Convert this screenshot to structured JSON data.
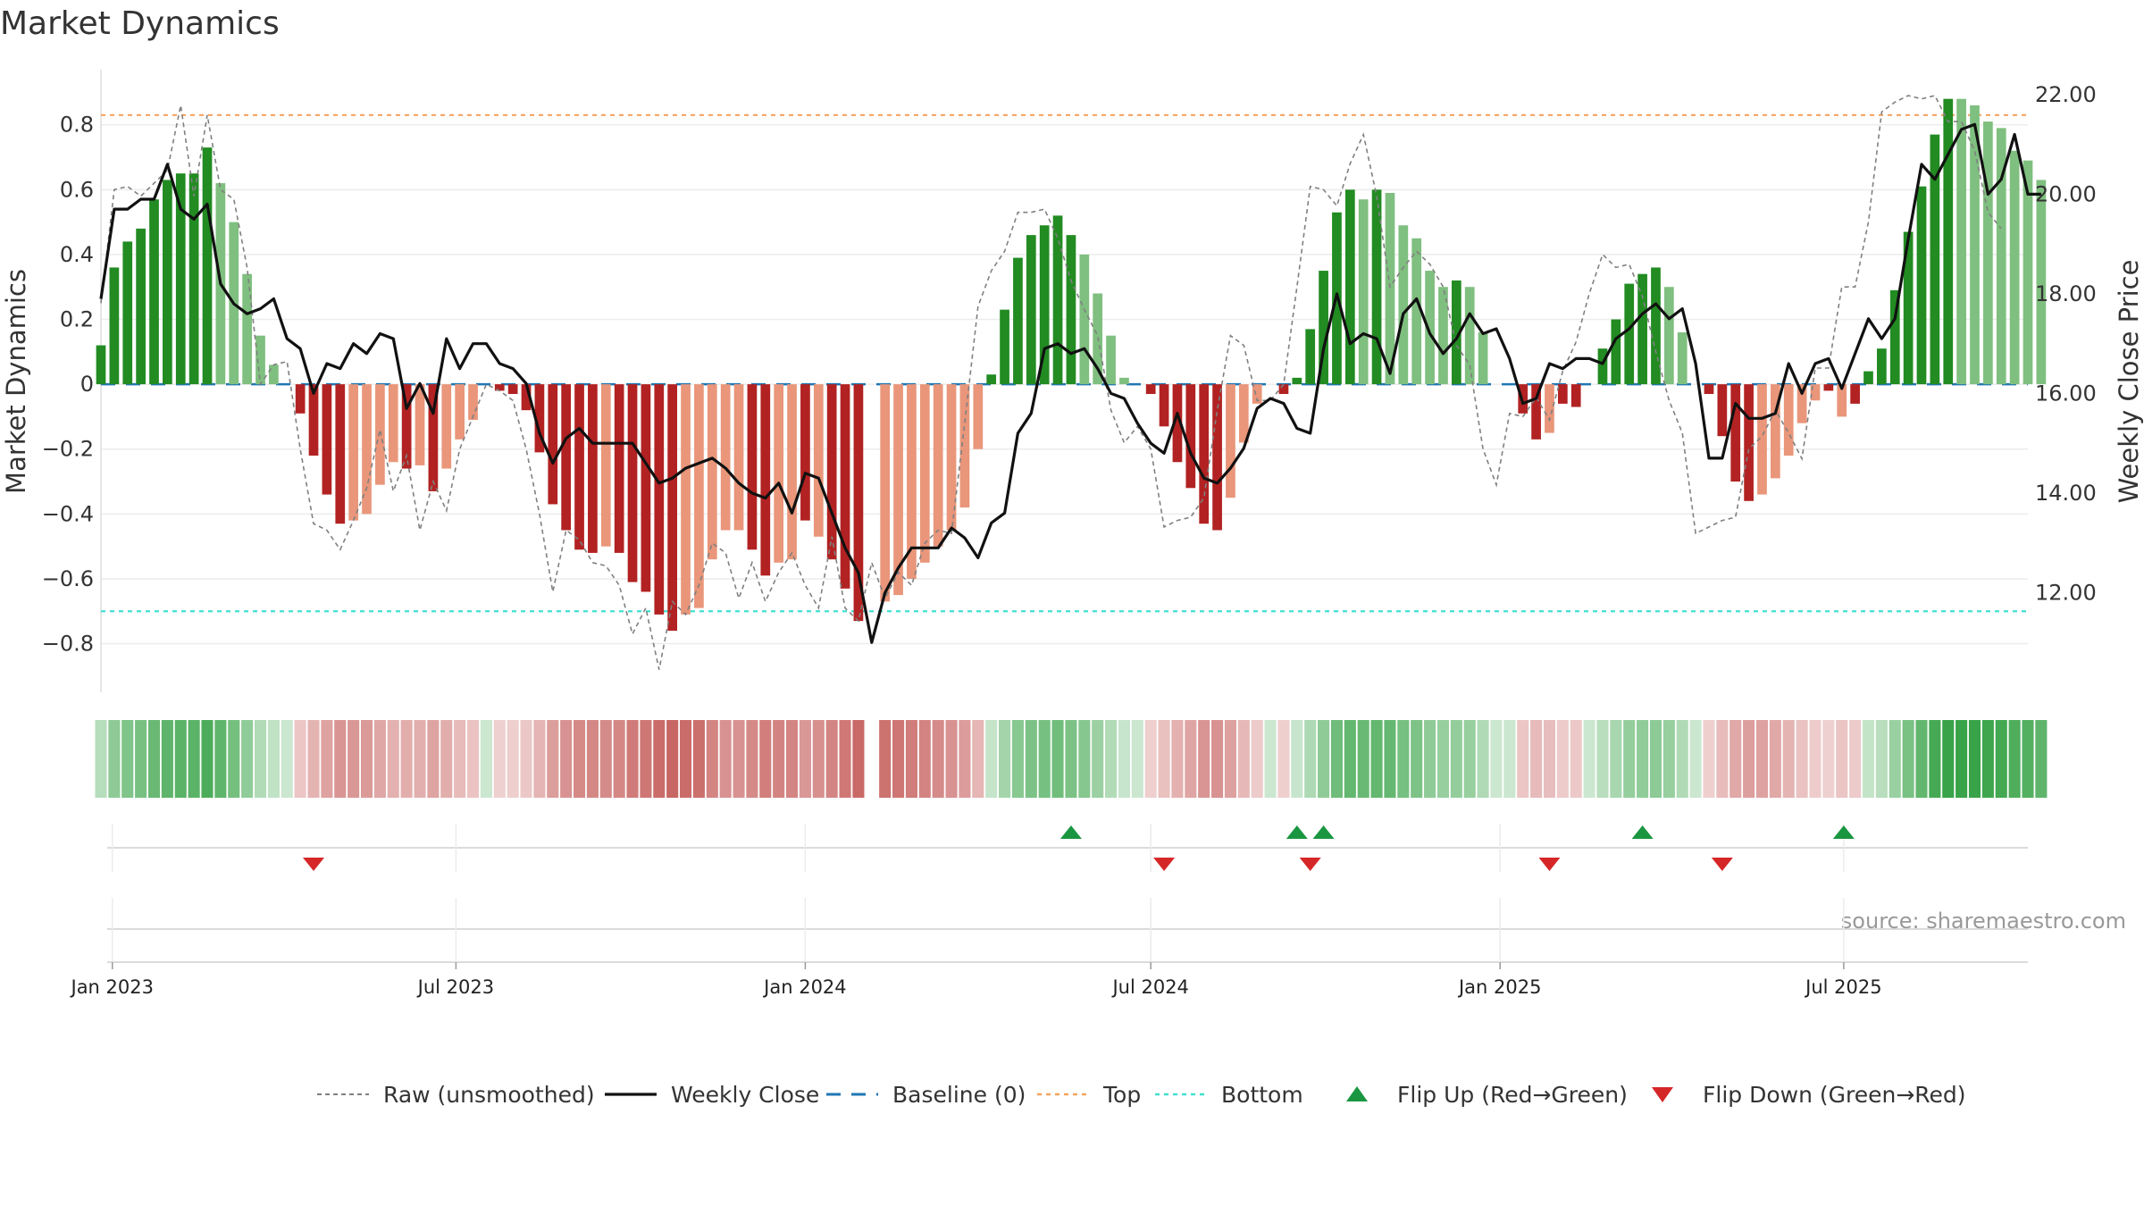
{
  "chart_data": {
    "type": "bar",
    "title": "Market Dynamics",
    "ylabel": "Market Dynamics",
    "y2label": "Weekly Close Price",
    "source": "source: sharemaestro.com",
    "ylim": [
      -0.95,
      0.97
    ],
    "y2lim": [
      10.0,
      22.5
    ],
    "yticks": [
      0.8,
      0.6,
      0.4,
      0.2,
      0,
      -0.2,
      -0.4,
      -0.6,
      -0.8
    ],
    "ytick_labels": [
      "0.8",
      "0.6",
      "0.4",
      "0.2",
      "0",
      "−0.2",
      "−0.4",
      "−0.6",
      "−0.8"
    ],
    "y2ticks": [
      22,
      20,
      18,
      16,
      14,
      12
    ],
    "y2tick_labels": [
      "22.00",
      "20.00",
      "18.00",
      "16.00",
      "14.00",
      "12.00"
    ],
    "x_start": "2022-12-26",
    "x_end": "2025-10-06",
    "xticks": [
      {
        "date": "2023-01-01",
        "label": "Jan 2023"
      },
      {
        "date": "2023-07-01",
        "label": "Jul 2023"
      },
      {
        "date": "2024-01-01",
        "label": "Jan 2024"
      },
      {
        "date": "2024-07-01",
        "label": "Jul 2024"
      },
      {
        "date": "2025-01-01",
        "label": "Jan 2025"
      },
      {
        "date": "2025-07-01",
        "label": "Jul 2025"
      }
    ],
    "first_week": "2022-12-26",
    "top": 0.83,
    "bottom": -0.7,
    "baseline": 0,
    "colors": {
      "strong_up": "#228b22",
      "weak_up": "#7fbf7f",
      "strong_down": "#b22222",
      "weak_down": "#e9967a",
      "raw": "#808080",
      "close": "#111111",
      "baseline": "#1f77b4",
      "top": "#f4a460",
      "bottom": "#40e0d0",
      "flip_up": "#1a9641",
      "flip_down": "#d62728"
    },
    "dynamics": [
      0.12,
      0.36,
      0.44,
      0.48,
      0.57,
      0.63,
      0.65,
      0.65,
      0.73,
      0.62,
      0.5,
      0.34,
      0.15,
      0.06,
      0.0,
      -0.09,
      -0.22,
      -0.34,
      -0.43,
      -0.42,
      -0.4,
      -0.31,
      -0.24,
      -0.26,
      -0.25,
      -0.33,
      -0.26,
      -0.17,
      -0.11,
      0.0,
      -0.02,
      -0.03,
      -0.08,
      -0.21,
      -0.37,
      -0.45,
      -0.51,
      -0.52,
      -0.5,
      -0.52,
      -0.61,
      -0.64,
      -0.71,
      -0.76,
      -0.71,
      -0.69,
      -0.54,
      -0.45,
      -0.45,
      -0.51,
      -0.59,
      -0.55,
      -0.54,
      -0.42,
      -0.47,
      -0.54,
      -0.63,
      -0.73,
      null,
      -0.67,
      -0.65,
      -0.6,
      -0.55,
      -0.5,
      -0.45,
      -0.38,
      -0.2,
      0.03,
      0.23,
      0.39,
      0.46,
      0.49,
      0.52,
      0.46,
      0.4,
      0.28,
      0.15,
      0.02,
      0.0,
      -0.03,
      -0.13,
      -0.24,
      -0.32,
      -0.43,
      -0.45,
      -0.35,
      -0.18,
      -0.06,
      0.0,
      -0.03,
      0.02,
      0.17,
      0.35,
      0.53,
      0.6,
      0.57,
      0.6,
      0.59,
      0.49,
      0.45,
      0.35,
      0.3,
      0.32,
      0.3,
      0.16,
      0.0,
      0.0,
      -0.09,
      -0.17,
      -0.15,
      -0.06,
      -0.07,
      0.0,
      0.11,
      0.2,
      0.31,
      0.34,
      0.36,
      0.3,
      0.16,
      0.0,
      -0.03,
      -0.16,
      -0.3,
      -0.36,
      -0.34,
      -0.29,
      -0.22,
      -0.12,
      -0.05,
      -0.02,
      -0.1,
      -0.06,
      0.04,
      0.11,
      0.29,
      0.47,
      0.61,
      0.77,
      0.88,
      0.88,
      0.86,
      0.81,
      0.79,
      0.72,
      0.69,
      0.63
    ],
    "strength": [
      1,
      1,
      1,
      1,
      1,
      1,
      1,
      1,
      1,
      0,
      0,
      0,
      0,
      0,
      0,
      1,
      1,
      1,
      1,
      0,
      0,
      0,
      0,
      1,
      0,
      1,
      0,
      0,
      0,
      0,
      1,
      1,
      1,
      1,
      1,
      1,
      1,
      1,
      0,
      1,
      1,
      1,
      1,
      1,
      0,
      0,
      0,
      0,
      0,
      1,
      1,
      0,
      0,
      1,
      0,
      1,
      1,
      1,
      0,
      0,
      0,
      0,
      0,
      0,
      0,
      0,
      0,
      1,
      1,
      1,
      1,
      1,
      1,
      1,
      0,
      0,
      0,
      0,
      0,
      1,
      1,
      1,
      1,
      1,
      1,
      0,
      0,
      0,
      0,
      1,
      1,
      1,
      1,
      1,
      1,
      0,
      1,
      0,
      0,
      0,
      0,
      0,
      1,
      0,
      0,
      0,
      0,
      1,
      1,
      0,
      1,
      1,
      0,
      1,
      1,
      1,
      1,
      1,
      0,
      0,
      0,
      1,
      1,
      1,
      1,
      0,
      0,
      0,
      0,
      0,
      1,
      0,
      1,
      1,
      1,
      1,
      1,
      1,
      1,
      1,
      0,
      0,
      0,
      0,
      0
    ],
    "raw": [
      0.25,
      0.6,
      0.61,
      0.58,
      0.62,
      0.66,
      0.86,
      0.58,
      0.83,
      0.6,
      0.57,
      0.36,
      0.0,
      0.06,
      0.07,
      -0.2,
      -0.43,
      -0.45,
      -0.51,
      -0.42,
      -0.32,
      -0.14,
      -0.33,
      -0.22,
      -0.45,
      -0.3,
      -0.39,
      -0.2,
      -0.1,
      0.0,
      -0.02,
      -0.05,
      -0.2,
      -0.4,
      -0.64,
      -0.45,
      -0.48,
      -0.55,
      -0.56,
      -0.62,
      -0.77,
      -0.69,
      -0.88,
      -0.67,
      -0.71,
      -0.62,
      -0.49,
      -0.52,
      -0.66,
      -0.55,
      -0.67,
      -0.58,
      -0.52,
      -0.62,
      -0.69,
      -0.47,
      -0.69,
      -0.73,
      -0.55,
      -0.66,
      -0.58,
      -0.62,
      -0.49,
      -0.45,
      -0.46,
      -0.12,
      0.24,
      0.35,
      0.41,
      0.53,
      0.53,
      0.54,
      0.45,
      0.32,
      0.23,
      0.15,
      -0.08,
      -0.18,
      -0.13,
      -0.2,
      -0.44,
      -0.42,
      -0.41,
      -0.35,
      -0.08,
      0.15,
      0.12,
      -0.05,
      -0.05,
      0.0,
      0.3,
      0.61,
      0.6,
      0.55,
      0.68,
      0.77,
      0.58,
      0.3,
      0.36,
      0.41,
      0.37,
      0.3,
      0.12,
      0.06,
      -0.2,
      -0.31,
      -0.09,
      -0.1,
      -0.04,
      -0.11,
      0.04,
      0.13,
      0.28,
      0.4,
      0.36,
      0.37,
      0.27,
      0.1,
      -0.05,
      -0.15,
      -0.46,
      -0.44,
      -0.42,
      -0.41,
      -0.2,
      -0.16,
      -0.08,
      -0.15,
      -0.23,
      0.05,
      0.05,
      0.3,
      0.3,
      0.5,
      0.84,
      0.87,
      0.89,
      0.88,
      0.89,
      0.81,
      0.81,
      0.72,
      0.53,
      0.48
    ],
    "close": [
      17.9,
      19.7,
      19.7,
      19.9,
      19.9,
      20.6,
      19.7,
      19.5,
      19.8,
      18.2,
      17.8,
      17.6,
      17.7,
      17.9,
      17.1,
      16.9,
      16.0,
      16.6,
      16.5,
      17.0,
      16.8,
      17.2,
      17.1,
      15.7,
      16.2,
      15.6,
      17.1,
      16.5,
      17.0,
      17.0,
      16.6,
      16.5,
      16.2,
      15.2,
      14.6,
      15.1,
      15.3,
      15.0,
      15.0,
      15.0,
      15.0,
      14.6,
      14.2,
      14.3,
      14.5,
      14.6,
      14.7,
      14.5,
      14.2,
      14.0,
      13.9,
      14.2,
      13.6,
      14.4,
      14.3,
      13.6,
      12.9,
      12.4,
      11.0,
      12.0,
      12.5,
      12.9,
      12.9,
      12.9,
      13.3,
      13.1,
      12.7,
      13.4,
      13.6,
      15.2,
      15.6,
      16.9,
      17.0,
      16.8,
      16.9,
      16.5,
      16.0,
      15.9,
      15.4,
      15.0,
      14.8,
      15.6,
      14.8,
      14.3,
      14.2,
      14.5,
      14.9,
      15.7,
      15.9,
      15.8,
      15.3,
      15.2,
      16.9,
      18.0,
      17.0,
      17.2,
      17.1,
      16.4,
      17.6,
      17.9,
      17.2,
      16.8,
      17.1,
      17.6,
      17.2,
      17.3,
      16.7,
      15.8,
      15.9,
      16.6,
      16.5,
      16.7,
      16.7,
      16.6,
      17.1,
      17.3,
      17.6,
      17.8,
      17.5,
      17.7,
      16.6,
      14.7,
      14.7,
      15.8,
      15.5,
      15.5,
      15.6,
      16.6,
      16.0,
      16.6,
      16.7,
      16.1,
      16.8,
      17.5,
      17.1,
      17.5,
      19.1,
      20.6,
      20.3,
      20.8,
      21.3,
      21.4,
      20.0,
      20.3,
      21.2,
      20.0,
      20.0
    ],
    "flips_up": [
      "2024-05-20",
      "2024-09-16",
      "2024-09-30",
      "2025-03-17",
      "2025-07-01"
    ],
    "flips_down": [
      "2023-04-17",
      "2024-07-08",
      "2024-09-23",
      "2025-01-27",
      "2025-04-28"
    ],
    "legend": [
      {
        "key": "raw",
        "label": "Raw (unsmoothed)"
      },
      {
        "key": "close",
        "label": "Weekly Close"
      },
      {
        "key": "baseline",
        "label": "Baseline (0)"
      },
      {
        "key": "top",
        "label": "Top"
      },
      {
        "key": "bottom",
        "label": "Bottom"
      },
      {
        "key": "flip_up",
        "label": "Flip Up (Red→Green)"
      },
      {
        "key": "flip_down",
        "label": "Flip Down (Green→Red)"
      }
    ]
  }
}
